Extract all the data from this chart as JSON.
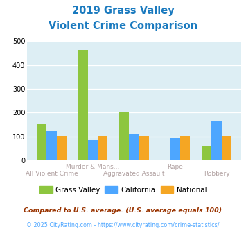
{
  "title_line1": "2019 Grass Valley",
  "title_line2": "Violent Crime Comparison",
  "title_color": "#1a7abf",
  "groups": [
    {
      "gv": 152,
      "ca": 122,
      "nat": 103
    },
    {
      "gv": 463,
      "ca": 85,
      "nat": 103
    },
    {
      "gv": 200,
      "ca": 110,
      "nat": 103
    },
    {
      "gv": 0,
      "ca": 92,
      "nat": 103
    },
    {
      "gv": 62,
      "ca": 165,
      "nat": 103
    }
  ],
  "x_labels_top": [
    "",
    "Murder & Mans...",
    "",
    "Rape",
    ""
  ],
  "x_labels_bot": [
    "All Violent Crime",
    "",
    "Aggravated Assault",
    "",
    "Robbery"
  ],
  "color_gv": "#8dc63f",
  "color_ca": "#4da6ff",
  "color_nat": "#f5a623",
  "ylim": [
    0,
    500
  ],
  "yticks": [
    0,
    100,
    200,
    300,
    400,
    500
  ],
  "bg_color": "#ddeef4",
  "legend_labels": [
    "Grass Valley",
    "California",
    "National"
  ],
  "footnote1": "Compared to U.S. average. (U.S. average equals 100)",
  "footnote2": "© 2025 CityRating.com - https://www.cityrating.com/crime-statistics/",
  "footnote1_color": "#993300",
  "footnote2_color": "#4da6ff",
  "label_color": "#b0a0a0"
}
